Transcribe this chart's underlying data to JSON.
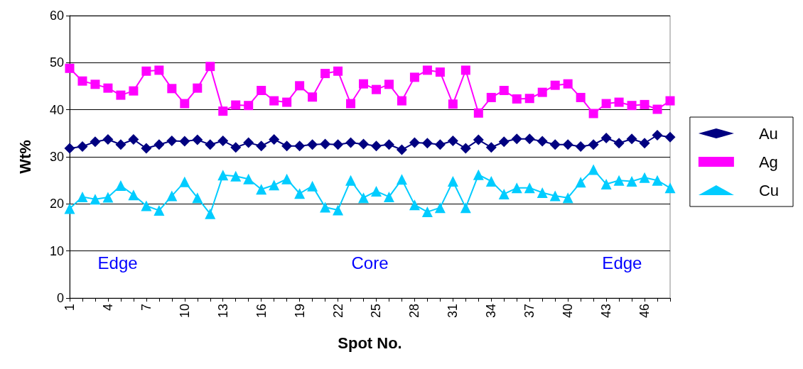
{
  "chart_data": {
    "type": "line",
    "xlabel": "Spot No.",
    "ylabel": "Wt%",
    "categories": [
      "1",
      null,
      null,
      "4",
      null,
      null,
      "7",
      null,
      null,
      "10",
      null,
      null,
      "13",
      null,
      null,
      "16",
      null,
      null,
      "19",
      null,
      null,
      "22",
      null,
      null,
      "25",
      null,
      null,
      "28",
      null,
      null,
      "31",
      null,
      null,
      "34",
      null,
      null,
      "37",
      null,
      null,
      "40",
      null,
      null,
      "43",
      null,
      null,
      "46",
      null,
      null
    ],
    "series": [
      {
        "name": "Au",
        "color": "#000080",
        "marker": "diamond",
        "values": [
          31.8,
          32.2,
          33.2,
          33.7,
          32.6,
          33.7,
          31.8,
          32.6,
          33.4,
          33.3,
          33.6,
          32.6,
          33.4,
          32.0,
          33.0,
          32.3,
          33.7,
          32.3,
          32.3,
          32.6,
          32.7,
          32.6,
          33.0,
          32.7,
          32.3,
          32.6,
          31.5,
          33.0,
          32.9,
          32.6,
          33.4,
          31.8,
          33.6,
          32.0,
          33.2,
          33.8,
          33.8,
          33.3,
          32.6,
          32.6,
          32.2,
          32.6,
          34.0,
          32.9,
          33.8,
          32.9,
          34.6,
          34.2
        ]
      },
      {
        "name": "Ag",
        "color": "#ff00ff",
        "marker": "square",
        "values": [
          48.8,
          46.1,
          45.4,
          44.6,
          43.1,
          44.0,
          48.2,
          48.4,
          44.5,
          41.3,
          44.6,
          49.2,
          39.7,
          41.0,
          40.9,
          44.1,
          41.9,
          41.6,
          45.1,
          42.7,
          47.7,
          48.2,
          41.3,
          45.5,
          44.3,
          45.4,
          41.9,
          46.9,
          48.4,
          48.0,
          41.2,
          48.4,
          39.3,
          42.6,
          44.1,
          42.3,
          42.4,
          43.7,
          45.2,
          45.5,
          42.6,
          39.2,
          41.3,
          41.6,
          40.9,
          41.1,
          40.1,
          41.9
        ]
      },
      {
        "name": "Cu",
        "color": "#00ccff",
        "marker": "triangle",
        "values": [
          19.0,
          21.5,
          21.0,
          21.4,
          23.9,
          21.9,
          19.6,
          18.6,
          21.7,
          24.7,
          21.3,
          17.9,
          26.1,
          25.9,
          25.3,
          23.1,
          24.0,
          25.3,
          22.2,
          23.8,
          19.3,
          18.7,
          25.0,
          21.3,
          22.7,
          21.5,
          25.2,
          19.8,
          18.3,
          19.2,
          24.8,
          19.2,
          26.2,
          24.8,
          22.1,
          23.4,
          23.4,
          22.4,
          21.7,
          21.3,
          24.6,
          27.3,
          24.2,
          25.0,
          24.8,
          25.6,
          25.0,
          23.4
        ]
      }
    ],
    "ylim": [
      0,
      60
    ],
    "yticks": [
      0,
      10,
      20,
      30,
      40,
      50,
      60
    ],
    "grid": "y",
    "legend": "right",
    "annotations": [
      "Edge",
      "Core",
      "Edge"
    ]
  }
}
